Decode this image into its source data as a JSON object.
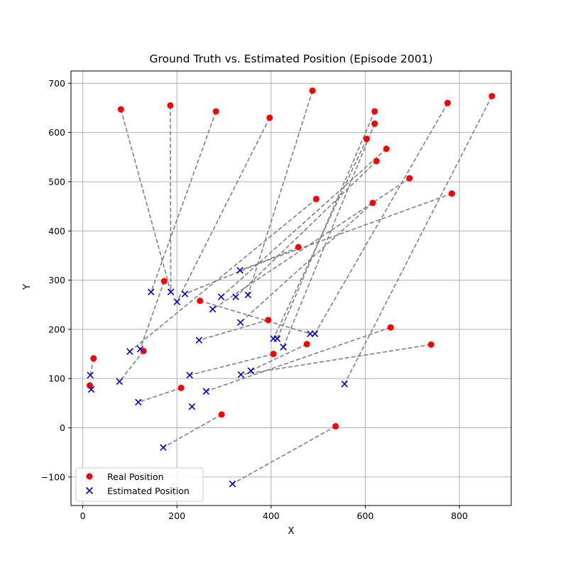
{
  "chart_data": {
    "type": "scatter",
    "title": "Ground Truth vs. Estimated Position (Episode 2001)",
    "xlabel": "X",
    "ylabel": "Y",
    "xlim": [
      -25,
      910
    ],
    "ylim": [
      -158,
      725
    ],
    "xticks": [
      0,
      200,
      400,
      600,
      800
    ],
    "yticks": [
      -100,
      0,
      100,
      200,
      300,
      400,
      500,
      600,
      700
    ],
    "xtick_labels": [
      "0",
      "200",
      "400",
      "600",
      "800"
    ],
    "ytick_labels": [
      "−100",
      "0",
      "100",
      "200",
      "300",
      "400",
      "500",
      "600",
      "700"
    ],
    "grid": true,
    "legend": {
      "position": "lower-left",
      "entries": [
        "Real Position",
        "Estimated Position"
      ]
    },
    "colors": {
      "real": "#ff0000",
      "estimated": "#0000cc",
      "connector": "#808080",
      "grid": "#b0b0b0"
    },
    "series": [
      {
        "name": "Real Position",
        "marker": "circle",
        "points": [
          [
            869,
            674
          ],
          [
            775,
            660
          ],
          [
            488,
            685
          ],
          [
            397,
            630
          ],
          [
            283,
            643
          ],
          [
            186,
            655
          ],
          [
            81,
            647
          ],
          [
            620,
            643
          ],
          [
            620,
            618
          ],
          [
            603,
            587
          ],
          [
            645,
            567
          ],
          [
            624,
            542
          ],
          [
            694,
            507
          ],
          [
            784,
            476
          ],
          [
            616,
            457
          ],
          [
            496,
            465
          ],
          [
            458,
            367
          ],
          [
            173,
            298
          ],
          [
            249,
            258
          ],
          [
            394,
            219
          ],
          [
            654,
            204
          ],
          [
            740,
            169
          ],
          [
            476,
            170
          ],
          [
            405,
            150
          ],
          [
            129,
            156
          ],
          [
            23,
            141
          ],
          [
            15,
            86
          ],
          [
            209,
            81
          ],
          [
            295,
            27
          ],
          [
            537,
            3
          ]
        ]
      },
      {
        "name": "Estimated Position",
        "marker": "x",
        "points": [
          [
            556,
            89
          ],
          [
            493,
            191
          ],
          [
            145,
            276
          ],
          [
            351,
            270
          ],
          [
            187,
            276
          ],
          [
            200,
            256
          ],
          [
            413,
            181
          ],
          [
            426,
            164
          ],
          [
            405,
            181
          ],
          [
            294,
            266
          ],
          [
            325,
            266
          ],
          [
            276,
            241
          ],
          [
            100,
            155
          ],
          [
            334,
            320
          ],
          [
            335,
            214
          ],
          [
            336,
            108
          ],
          [
            122,
            160
          ],
          [
            357,
            116
          ],
          [
            217,
            272
          ],
          [
            247,
            178
          ],
          [
            262,
            74
          ],
          [
            78,
            94
          ],
          [
            483,
            191
          ],
          [
            227,
            107
          ],
          [
            16,
            107
          ],
          [
            18,
            78
          ],
          [
            118,
            52
          ],
          [
            232,
            43
          ],
          [
            171,
            -40
          ],
          [
            318,
            -114
          ]
        ]
      }
    ],
    "connections": [
      [
        [
          869,
          674
        ],
        [
          556,
          89
        ]
      ],
      [
        [
          775,
          660
        ],
        [
          493,
          191
        ]
      ],
      [
        [
          488,
          685
        ],
        [
          351,
          270
        ]
      ],
      [
        [
          397,
          630
        ],
        [
          200,
          256
        ]
      ],
      [
        [
          283,
          643
        ],
        [
          145,
          276
        ]
      ],
      [
        [
          186,
          655
        ],
        [
          187,
          276
        ]
      ],
      [
        [
          81,
          647
        ],
        [
          187,
          276
        ]
      ],
      [
        [
          620,
          643
        ],
        [
          413,
          181
        ]
      ],
      [
        [
          620,
          618
        ],
        [
          426,
          164
        ]
      ],
      [
        [
          603,
          587
        ],
        [
          405,
          181
        ]
      ],
      [
        [
          645,
          567
        ],
        [
          294,
          266
        ]
      ],
      [
        [
          624,
          542
        ],
        [
          325,
          266
        ]
      ],
      [
        [
          694,
          507
        ],
        [
          276,
          241
        ]
      ],
      [
        [
          784,
          476
        ],
        [
          334,
          320
        ]
      ],
      [
        [
          616,
          457
        ],
        [
          335,
          214
        ]
      ],
      [
        [
          496,
          465
        ],
        [
          100,
          155
        ]
      ],
      [
        [
          458,
          367
        ],
        [
          217,
          272
        ]
      ],
      [
        [
          173,
          298
        ],
        [
          122,
          160
        ]
      ],
      [
        [
          394,
          219
        ],
        [
          247,
          178
        ]
      ],
      [
        [
          654,
          204
        ],
        [
          262,
          74
        ]
      ],
      [
        [
          740,
          169
        ],
        [
          336,
          108
        ]
      ],
      [
        [
          476,
          170
        ],
        [
          357,
          116
        ]
      ],
      [
        [
          405,
          150
        ],
        [
          227,
          107
        ]
      ],
      [
        [
          129,
          156
        ],
        [
          78,
          94
        ]
      ],
      [
        [
          23,
          141
        ],
        [
          16,
          107
        ]
      ],
      [
        [
          15,
          86
        ],
        [
          18,
          78
        ]
      ],
      [
        [
          209,
          81
        ],
        [
          118,
          52
        ]
      ],
      [
        [
          295,
          27
        ],
        [
          171,
          -40
        ]
      ],
      [
        [
          537,
          3
        ],
        [
          318,
          -114
        ]
      ],
      [
        [
          249,
          258
        ],
        [
          483,
          191
        ]
      ]
    ]
  }
}
